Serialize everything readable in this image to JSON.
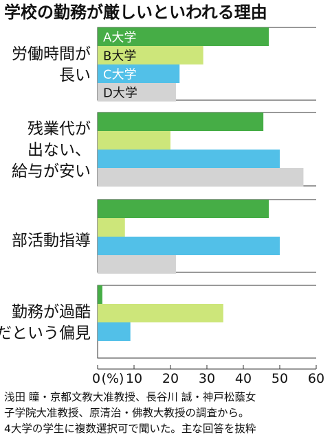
{
  "chart_data": {
    "type": "bar",
    "orientation": "horizontal",
    "title": "学校の勤務が厳しいといわれる理由",
    "categories": [
      [
        "労働時間が",
        "長い"
      ],
      [
        "残業代が",
        "出ない、",
        "給与が安い"
      ],
      [
        "部活動指導"
      ],
      [
        "勤務が過酷",
        "だという偏見"
      ]
    ],
    "series": [
      {
        "name": "A大学",
        "color": "#46ad46",
        "values": [
          47,
          45.5,
          47,
          1.3
        ]
      },
      {
        "name": "B大学",
        "color": "#cde67a",
        "values": [
          29,
          20,
          7.5,
          34.5
        ]
      },
      {
        "name": "C大学",
        "color": "#52c0e8",
        "values": [
          22.5,
          50,
          50,
          9
        ]
      },
      {
        "name": "D大学",
        "color": "#d3d3d3",
        "values": [
          21.5,
          56.5,
          21.5,
          null
        ]
      }
    ],
    "xaxis": {
      "min": 0,
      "max": 60,
      "ticks": [
        "0",
        "10",
        "20",
        "30",
        "40",
        "50",
        "60"
      ],
      "unit": "(%)"
    },
    "legend": "inside-top",
    "grid": false,
    "notes": [
      "浅田 瞳・京都文教大准教授、長谷川 誠・神戸松蔭女",
      "子学院大准教授、原清治・佛教大教授の調査から。",
      "4大学の学生に複数選択可で聞いた。主な回答を抜粋"
    ]
  }
}
